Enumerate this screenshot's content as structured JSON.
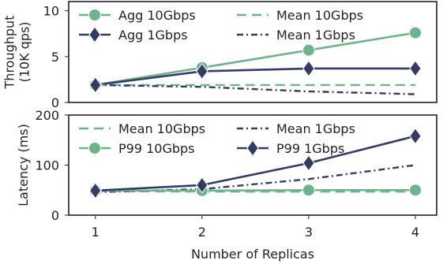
{
  "chart_data": [
    {
      "type": "line",
      "xlabel": "",
      "ylabel": "Throughput\n(10K qps)",
      "x": [
        1,
        2,
        3,
        4
      ],
      "ylim": [
        0,
        11
      ],
      "yticks": [
        0,
        5,
        10
      ],
      "grid": false,
      "legend": "top-left",
      "series": [
        {
          "name": "Agg 10Gbps",
          "values": [
            1.9,
            3.8,
            5.7,
            7.6
          ],
          "style": "solid",
          "marker": "circle",
          "color": "#6db38c"
        },
        {
          "name": "Agg 1Gbps",
          "values": [
            1.9,
            3.4,
            3.7,
            3.7
          ],
          "style": "solid",
          "marker": "diamond",
          "color": "#343c63"
        },
        {
          "name": "Mean 10Gbps",
          "values": [
            1.9,
            1.9,
            1.9,
            1.9
          ],
          "style": "dashed",
          "marker": "none",
          "color": "#6db38c"
        },
        {
          "name": "Mean 1Gbps",
          "values": [
            1.9,
            1.7,
            1.2,
            0.9
          ],
          "style": "dashdot",
          "marker": "none",
          "color": "#343c63"
        }
      ]
    },
    {
      "type": "line",
      "xlabel": "Number of Replicas",
      "ylabel": "Latency (ms)",
      "x": [
        1,
        2,
        3,
        4
      ],
      "xticks": [
        "1",
        "2",
        "3",
        "4"
      ],
      "ylim": [
        0,
        200
      ],
      "yticks": [
        0,
        100,
        200
      ],
      "grid": false,
      "legend": "top-left",
      "series": [
        {
          "name": "Mean 10Gbps",
          "values": [
            48,
            47,
            47,
            47
          ],
          "style": "dashed",
          "marker": "none",
          "color": "#6db38c"
        },
        {
          "name": "Mean 1Gbps",
          "values": [
            46,
            52,
            72,
            100
          ],
          "style": "dashdot",
          "marker": "none",
          "color": "#343c63"
        },
        {
          "name": "P99 10Gbps",
          "values": [
            49,
            49,
            50,
            50
          ],
          "style": "solid",
          "marker": "circle",
          "color": "#6db38c"
        },
        {
          "name": "P99 1Gbps",
          "values": [
            49,
            60,
            104,
            158
          ],
          "style": "solid",
          "marker": "diamond",
          "color": "#343c63"
        }
      ]
    }
  ]
}
